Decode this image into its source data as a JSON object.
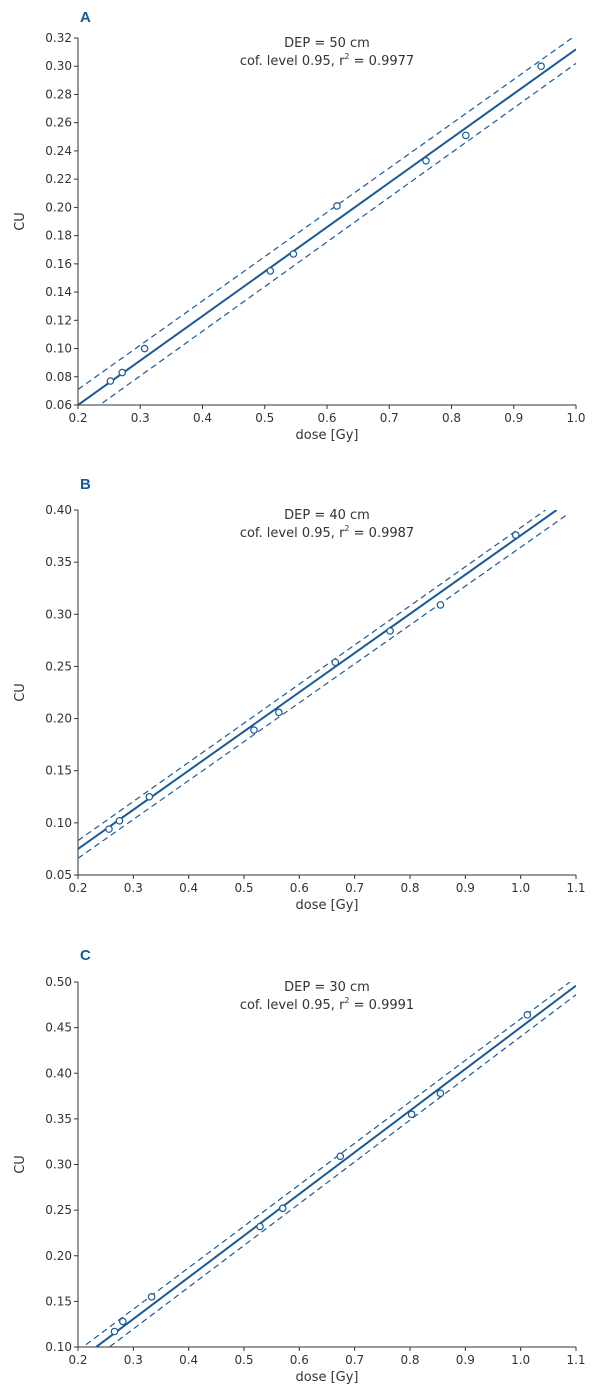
{
  "colors": {
    "line": "#1a5a96",
    "axis": "#333333",
    "text": "#333333"
  },
  "chart_data": [
    {
      "type": "scatter",
      "panel_label": "A",
      "annotation_line1": "DEP = 50 cm",
      "annotation_line2_prefix": "cof. level 0.95, r",
      "annotation_line2_sup": "2",
      "annotation_line2_suffix": " = 0.9977",
      "xlabel": "dose [Gy]",
      "ylabel": "CU",
      "xlim": [
        0.2,
        1.0
      ],
      "ylim": [
        0.06,
        0.32
      ],
      "xticks": [
        0.2,
        0.3,
        0.4,
        0.5,
        0.6,
        0.7,
        0.8,
        0.9,
        1.0
      ],
      "xtick_labels": [
        "0.2",
        "0.3",
        "0.4",
        "0.5",
        "0.6",
        "0.7",
        "0.8",
        "0.9",
        "1.0"
      ],
      "yticks": [
        0.06,
        0.08,
        0.1,
        0.12,
        0.14,
        0.16,
        0.18,
        0.2,
        0.22,
        0.24,
        0.26,
        0.28,
        0.3,
        0.32
      ],
      "ytick_labels": [
        "0.06",
        "0.08",
        "0.10",
        "0.12",
        "0.14",
        "0.16",
        "0.18",
        "0.20",
        "0.22",
        "0.24",
        "0.26",
        "0.28",
        "0.30",
        "0.32"
      ],
      "points": [
        [
          0.252,
          0.077
        ],
        [
          0.271,
          0.083
        ],
        [
          0.307,
          0.1
        ],
        [
          0.509,
          0.155
        ],
        [
          0.546,
          0.167
        ],
        [
          0.616,
          0.201
        ],
        [
          0.759,
          0.233
        ],
        [
          0.823,
          0.251
        ],
        [
          0.944,
          0.3
        ]
      ],
      "fit": [
        [
          0.2,
          0.06
        ],
        [
          1.0,
          0.312
        ]
      ],
      "ci_upper": [
        [
          0.2,
          0.071
        ],
        [
          1.0,
          0.322
        ]
      ],
      "ci_lower": [
        [
          0.2,
          0.049
        ],
        [
          1.0,
          0.302
        ]
      ]
    },
    {
      "type": "scatter",
      "panel_label": "B",
      "annotation_line1": "DEP = 40 cm",
      "annotation_line2_prefix": "cof. level 0.95, r",
      "annotation_line2_sup": "2",
      "annotation_line2_suffix": " = 0.9987",
      "xlabel": "dose [Gy]",
      "ylabel": "CU",
      "xlim": [
        0.2,
        1.1
      ],
      "ylim": [
        0.05,
        0.4
      ],
      "xticks": [
        0.2,
        0.3,
        0.4,
        0.5,
        0.6,
        0.7,
        0.8,
        0.9,
        1.0,
        1.1
      ],
      "xtick_labels": [
        "0.2",
        "0.3",
        "0.4",
        "0.5",
        "0.6",
        "0.7",
        "0.8",
        "0.9",
        "1.0",
        "1.1"
      ],
      "yticks": [
        0.05,
        0.1,
        0.15,
        0.2,
        0.25,
        0.3,
        0.35,
        0.4
      ],
      "ytick_labels": [
        "0.05",
        "0.10",
        "0.15",
        "0.20",
        "0.25",
        "0.30",
        "0.35",
        "0.40"
      ],
      "points": [
        [
          0.256,
          0.094
        ],
        [
          0.275,
          0.102
        ],
        [
          0.329,
          0.125
        ],
        [
          0.518,
          0.189
        ],
        [
          0.563,
          0.206
        ],
        [
          0.665,
          0.254
        ],
        [
          0.764,
          0.284
        ],
        [
          0.855,
          0.309
        ],
        [
          0.991,
          0.376
        ]
      ],
      "fit": [
        [
          0.2,
          0.075
        ],
        [
          1.065,
          0.4
        ]
      ],
      "ci_upper": [
        [
          0.2,
          0.083
        ],
        [
          1.045,
          0.4
        ]
      ],
      "ci_lower": [
        [
          0.2,
          0.066
        ],
        [
          1.085,
          0.396
        ]
      ]
    },
    {
      "type": "scatter",
      "panel_label": "C",
      "annotation_line1": "DEP = 30 cm",
      "annotation_line2_prefix": "cof. level 0.95, r",
      "annotation_line2_sup": "2",
      "annotation_line2_suffix": " = 0.9991",
      "xlabel": "dose [Gy]",
      "ylabel": "CU",
      "xlim": [
        0.2,
        1.1
      ],
      "ylim": [
        0.1,
        0.5
      ],
      "xticks": [
        0.2,
        0.3,
        0.4,
        0.5,
        0.6,
        0.7,
        0.8,
        0.9,
        1.0,
        1.1
      ],
      "xtick_labels": [
        "0.2",
        "0.3",
        "0.4",
        "0.5",
        "0.6",
        "0.7",
        "0.8",
        "0.9",
        "1.0",
        "1.1"
      ],
      "yticks": [
        0.1,
        0.15,
        0.2,
        0.25,
        0.3,
        0.35,
        0.4,
        0.45,
        0.5
      ],
      "ytick_labels": [
        "0.10",
        "0.15",
        "0.20",
        "0.25",
        "0.30",
        "0.35",
        "0.40",
        "0.45",
        "0.50"
      ],
      "points": [
        [
          0.266,
          0.117
        ],
        [
          0.281,
          0.128
        ],
        [
          0.333,
          0.155
        ],
        [
          0.529,
          0.232
        ],
        [
          0.57,
          0.252
        ],
        [
          0.674,
          0.309
        ],
        [
          0.803,
          0.355
        ],
        [
          0.855,
          0.378
        ],
        [
          1.012,
          0.464
        ]
      ],
      "fit": [
        [
          0.2,
          0.085
        ],
        [
          1.1,
          0.496
        ]
      ],
      "ci_upper": [
        [
          0.2,
          0.096
        ],
        [
          1.1,
          0.505
        ]
      ],
      "ci_lower": [
        [
          0.2,
          0.074
        ],
        [
          1.1,
          0.486
        ]
      ]
    }
  ]
}
